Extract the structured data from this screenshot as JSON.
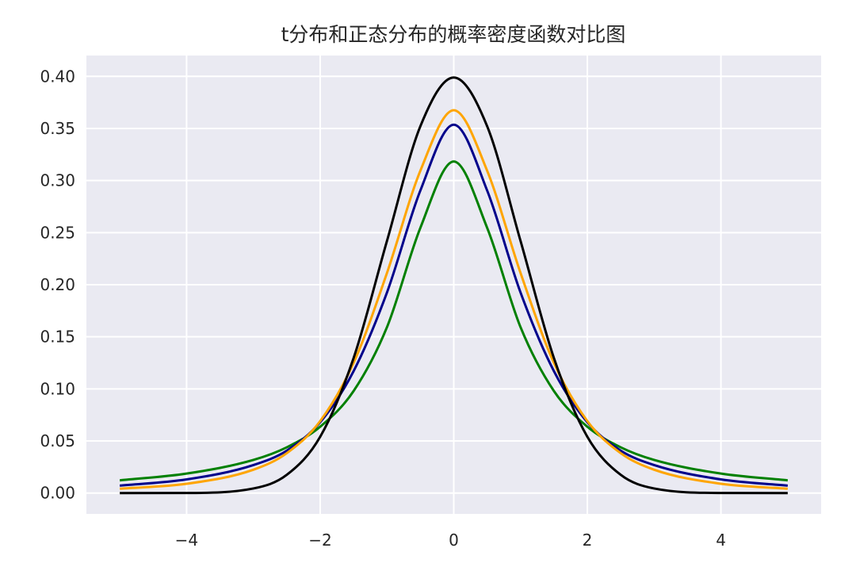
{
  "chart_data": {
    "type": "line",
    "title": "t分布和正态分布的概率密度函数对比图",
    "xlabel": "",
    "ylabel": "",
    "xlim": [
      -5.5,
      5.5
    ],
    "ylim": [
      -0.02,
      0.42
    ],
    "x_ticks": [
      -4,
      -2,
      0,
      2,
      4
    ],
    "x_tick_labels": [
      "−4",
      "−2",
      "0",
      "2",
      "4"
    ],
    "y_ticks": [
      0.0,
      0.05,
      0.1,
      0.15,
      0.2,
      0.25,
      0.3,
      0.35,
      0.4
    ],
    "y_tick_labels": [
      "0.00",
      "0.05",
      "0.10",
      "0.15",
      "0.20",
      "0.25",
      "0.30",
      "0.35",
      "0.40"
    ],
    "grid": true,
    "background_color": "#eaeaf2",
    "grid_color": "#ffffff",
    "series": [
      {
        "color": "#008000",
        "x": [
          -5,
          -4,
          -3,
          -2.5,
          -2,
          -1.5,
          -1,
          -0.5,
          0,
          0.5,
          1,
          1.5,
          2,
          2.5,
          3,
          4,
          5
        ],
        "y": [
          0.0122,
          0.0187,
          0.0318,
          0.0439,
          0.0637,
          0.0979,
          0.1592,
          0.2546,
          0.3183,
          0.2546,
          0.1592,
          0.0979,
          0.0637,
          0.0439,
          0.0318,
          0.0187,
          0.0122
        ]
      },
      {
        "color": "#00008b",
        "x": [
          -5,
          -4,
          -3,
          -2.5,
          -2,
          -1.5,
          -1,
          -0.5,
          0,
          0.5,
          1,
          1.5,
          2,
          2.5,
          3,
          4,
          5
        ],
        "y": [
          0.0071,
          0.0131,
          0.0269,
          0.0407,
          0.068,
          0.117,
          0.1925,
          0.2904,
          0.3536,
          0.2904,
          0.1925,
          0.117,
          0.068,
          0.0407,
          0.0269,
          0.0131,
          0.0071
        ]
      },
      {
        "color": "#ffa500",
        "x": [
          -5,
          -4,
          -3,
          -2.5,
          -2,
          -1.5,
          -1,
          -0.5,
          0,
          0.5,
          1,
          1.5,
          2,
          2.5,
          3,
          4,
          5
        ],
        "y": [
          0.0042,
          0.0089,
          0.0224,
          0.0383,
          0.0691,
          0.1249,
          0.2112,
          0.3094,
          0.3675,
          0.3094,
          0.2112,
          0.1249,
          0.0691,
          0.0383,
          0.0224,
          0.0089,
          0.0042
        ]
      },
      {
        "color": "#000000",
        "x": [
          -5,
          -4,
          -3,
          -2.5,
          -2,
          -1.5,
          -1,
          -0.5,
          0,
          0.5,
          1,
          1.5,
          2,
          2.5,
          3,
          4,
          5
        ],
        "y": [
          0.0,
          0.0001,
          0.0044,
          0.0175,
          0.054,
          0.1295,
          0.242,
          0.3521,
          0.3989,
          0.3521,
          0.242,
          0.1295,
          0.054,
          0.0175,
          0.0044,
          0.0001,
          0.0
        ]
      }
    ]
  }
}
